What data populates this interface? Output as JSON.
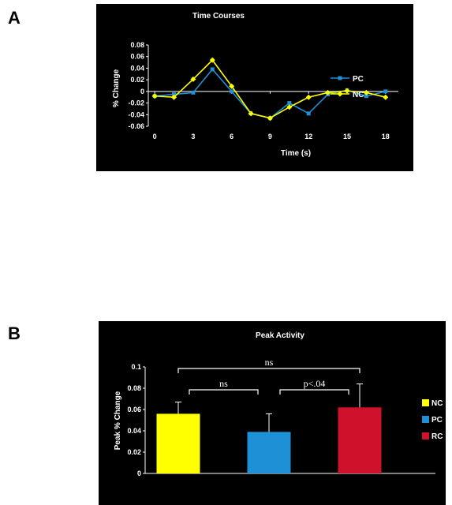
{
  "panels": {
    "a_label": "A",
    "b_label": "B"
  },
  "colors": {
    "background": "#000000",
    "axis": "#ffffff",
    "nc": "#ffff00",
    "pc": "#1e90d6",
    "rc": "#d0112b"
  },
  "chart_data": [
    {
      "type": "line",
      "title": "Time Courses",
      "xlabel": "Time (s)",
      "ylabel": "% Change",
      "x": [
        0,
        1.5,
        3,
        4.5,
        6,
        7.5,
        9,
        10.5,
        12,
        13.5,
        15,
        16.5,
        18
      ],
      "xticks": [
        0,
        3,
        6,
        9,
        12,
        15,
        18
      ],
      "xtick_labels": [
        "0",
        "3",
        "6",
        "9",
        "12",
        "15",
        "18"
      ],
      "xlim": [
        -0.5,
        19
      ],
      "ylim": [
        -0.06,
        0.08
      ],
      "yticks": [
        0.08,
        0.06,
        0.04,
        0.02,
        0,
        -0.02,
        -0.04,
        -0.06
      ],
      "ytick_labels": [
        "0.08",
        "0.06",
        "0.04",
        "0.02",
        "0",
        "-0.02",
        "-0.04",
        "-0.06"
      ],
      "series": [
        {
          "name": "PC",
          "color": "#1e90d6",
          "marker": "square",
          "values": [
            -0.008,
            -0.005,
            -0.002,
            0.038,
            0.0,
            -0.038,
            -0.046,
            -0.02,
            -0.038,
            -0.005,
            0.002,
            -0.008,
            0.0
          ]
        },
        {
          "name": "NC",
          "color": "#ffff00",
          "marker": "diamond",
          "values": [
            -0.008,
            -0.01,
            0.021,
            0.054,
            0.009,
            -0.038,
            -0.046,
            -0.027,
            -0.01,
            -0.002,
            0.001,
            -0.002,
            -0.01
          ]
        }
      ],
      "legend": "right",
      "grid": false
    },
    {
      "type": "bar",
      "title": "Peak Activity",
      "xlabel": "",
      "ylabel": "Peak % Change",
      "categories": [
        "NC",
        "PC",
        "RC"
      ],
      "values": [
        0.056,
        0.039,
        0.062
      ],
      "errors": [
        0.011,
        0.017,
        0.022
      ],
      "colors": [
        "#ffff00",
        "#1e90d6",
        "#d0112b"
      ],
      "ylim": [
        0,
        0.1
      ],
      "yticks": [
        0,
        0.02,
        0.04,
        0.06,
        0.08,
        0.1
      ],
      "ytick_labels": [
        "0",
        "0.02",
        "0.04",
        "0.06",
        "0.08",
        "0.1"
      ],
      "legend": "right",
      "grid": false,
      "annotations": [
        {
          "text": "ns",
          "from": "NC",
          "to": "RC",
          "level": 2
        },
        {
          "text": "ns",
          "from": "NC",
          "to": "PC",
          "level": 1
        },
        {
          "text": "p<.04",
          "from": "PC",
          "to": "RC",
          "level": 1
        }
      ]
    }
  ]
}
